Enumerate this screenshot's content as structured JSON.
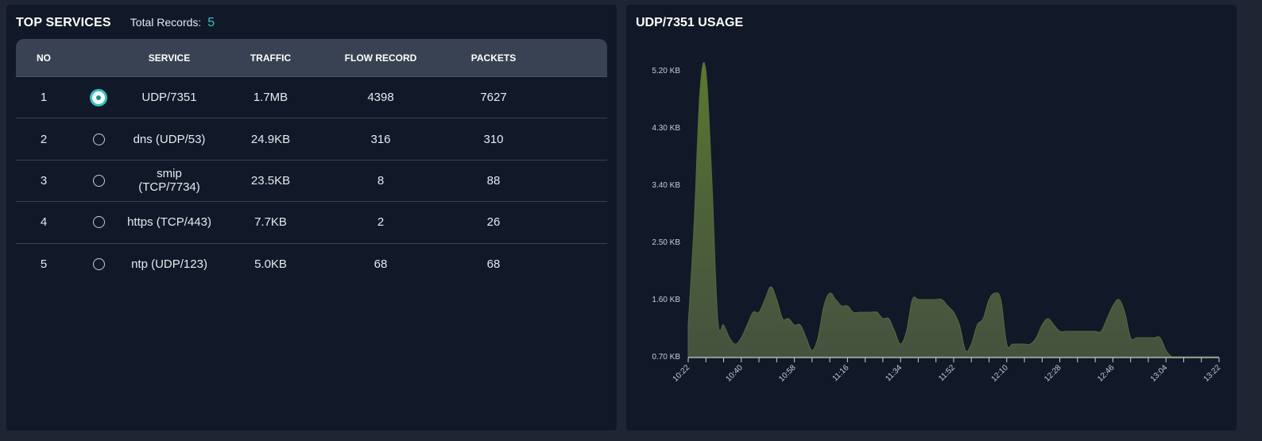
{
  "top_services": {
    "title": "TOP SERVICES",
    "records_label": "Total Records:",
    "records_value": "5",
    "columns": [
      "NO",
      "",
      "SERVICE",
      "TRAFFIC",
      "FLOW RECORD",
      "PACKETS"
    ],
    "rows": [
      {
        "no": "1",
        "selected": true,
        "service": "UDP/7351",
        "traffic": "1.7MB",
        "flow": "4398",
        "packets": "7627"
      },
      {
        "no": "2",
        "selected": false,
        "service": "dns (UDP/53)",
        "traffic": "24.9KB",
        "flow": "316",
        "packets": "310"
      },
      {
        "no": "3",
        "selected": false,
        "service": "smip (TCP/7734)",
        "traffic": "23.5KB",
        "flow": "8",
        "packets": "88"
      },
      {
        "no": "4",
        "selected": false,
        "service": "https (TCP/443)",
        "traffic": "7.7KB",
        "flow": "2",
        "packets": "26"
      },
      {
        "no": "5",
        "selected": false,
        "service": "ntp (UDP/123)",
        "traffic": "5.0KB",
        "flow": "68",
        "packets": "68"
      }
    ]
  },
  "usage_chart": {
    "title": "UDP/7351 USAGE",
    "accent_color": "#2ec4c4",
    "fill_color": "#4a5b3b",
    "fill_top_color": "#5a7a2a",
    "chart_data": {
      "type": "area",
      "title": "UDP/7351 USAGE",
      "y_ticks": [
        "0.70 KB",
        "1.60 KB",
        "2.50 KB",
        "3.40 KB",
        "4.30 KB",
        "5.20 KB"
      ],
      "y_tick_values": [
        0.7,
        1.6,
        2.5,
        3.4,
        4.3,
        5.2
      ],
      "ylim": [
        0.7,
        5.2
      ],
      "x_ticks": [
        "10:22",
        "10:40",
        "10:58",
        "11:16",
        "11:34",
        "11:52",
        "12:10",
        "12:28",
        "12:46",
        "13:04",
        "13:22"
      ],
      "x": [
        "10:22",
        "10:24",
        "10:26",
        "10:28",
        "10:30",
        "10:32",
        "10:34",
        "10:36",
        "10:38",
        "10:40",
        "10:42",
        "10:44",
        "10:46",
        "10:48",
        "10:50",
        "10:52",
        "10:54",
        "10:56",
        "10:58",
        "11:00",
        "11:02",
        "11:04",
        "11:06",
        "11:08",
        "11:10",
        "11:12",
        "11:14",
        "11:16",
        "11:18",
        "11:20",
        "11:22",
        "11:24",
        "11:26",
        "11:28",
        "11:30",
        "11:32",
        "11:34",
        "11:36",
        "11:38",
        "11:40",
        "11:42",
        "11:44",
        "11:46",
        "11:48",
        "11:50",
        "11:52",
        "11:54",
        "11:56",
        "11:58",
        "12:00",
        "12:02",
        "12:04",
        "12:06",
        "12:08",
        "12:10",
        "12:12",
        "12:14",
        "12:16",
        "12:18",
        "12:20",
        "12:22",
        "12:24",
        "12:26",
        "12:28",
        "12:30",
        "12:32",
        "12:34",
        "12:36",
        "12:38",
        "12:40",
        "12:42",
        "12:44",
        "12:46",
        "12:48",
        "12:50",
        "12:52",
        "12:54",
        "12:56",
        "12:58",
        "13:00",
        "13:02",
        "13:04",
        "13:06",
        "13:08",
        "13:10",
        "13:12",
        "13:14",
        "13:16",
        "13:18",
        "13:20",
        "13:22"
      ],
      "values": [
        1.2,
        2.8,
        4.9,
        5.2,
        3.5,
        1.3,
        1.2,
        1.0,
        0.9,
        1.0,
        1.2,
        1.4,
        1.4,
        1.6,
        1.8,
        1.6,
        1.3,
        1.3,
        1.2,
        1.2,
        1.0,
        0.8,
        1.0,
        1.5,
        1.7,
        1.6,
        1.5,
        1.5,
        1.4,
        1.4,
        1.4,
        1.4,
        1.4,
        1.3,
        1.3,
        1.1,
        0.9,
        1.1,
        1.6,
        1.6,
        1.6,
        1.6,
        1.6,
        1.6,
        1.5,
        1.4,
        1.2,
        0.8,
        0.9,
        1.2,
        1.3,
        1.6,
        1.7,
        1.6,
        0.9,
        0.9,
        0.9,
        0.9,
        0.9,
        1.0,
        1.2,
        1.3,
        1.2,
        1.1,
        1.1,
        1.1,
        1.1,
        1.1,
        1.1,
        1.1,
        1.1,
        1.3,
        1.5,
        1.6,
        1.4,
        1.0,
        1.0,
        1.0,
        1.0,
        1.0,
        1.0,
        0.8,
        0.7,
        0.7,
        0.7,
        0.7,
        0.7,
        0.7,
        0.7,
        0.7,
        0.7
      ]
    }
  }
}
